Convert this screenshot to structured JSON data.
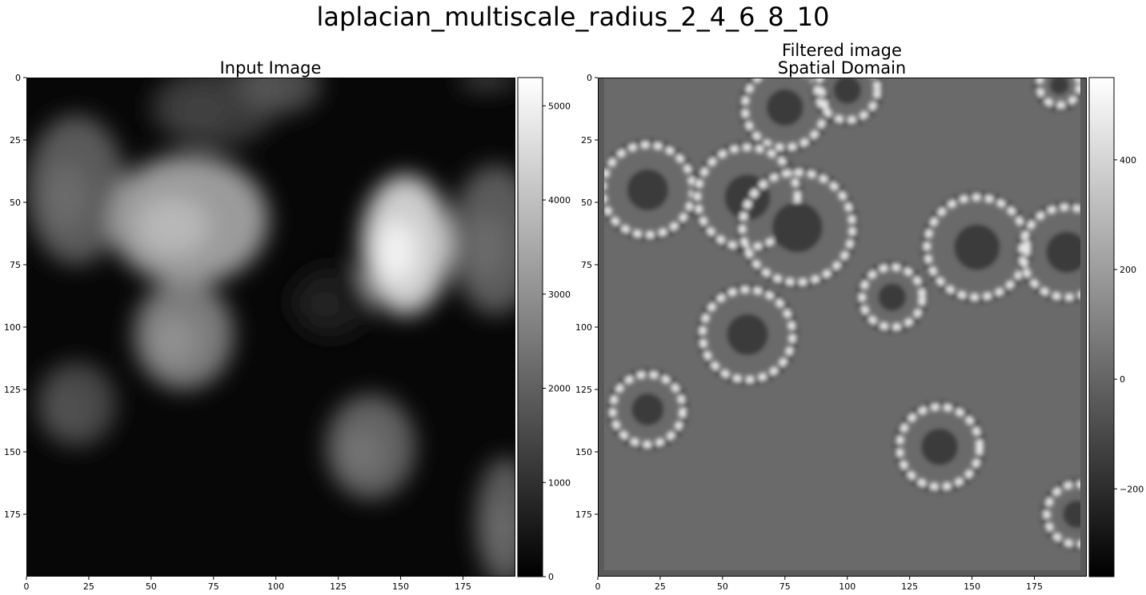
{
  "figure": {
    "suptitle": "laplacian_multiscale_radius_2_4_6_8_10"
  },
  "chart_data": [
    {
      "type": "heatmap",
      "title": "Input Image",
      "colormap": "gray",
      "xlim": [
        0,
        196
      ],
      "ylim": [
        0,
        200
      ],
      "xticks": [
        0,
        25,
        50,
        75,
        100,
        125,
        150,
        175
      ],
      "yticks": [
        0,
        25,
        50,
        75,
        100,
        125,
        150,
        175
      ],
      "colorbar": {
        "range": [
          0,
          5300
        ],
        "ticks": [
          0,
          1000,
          2000,
          3000,
          4000,
          5000
        ]
      },
      "background_value": 150,
      "blobs": [
        {
          "x": 20,
          "y": 45,
          "rx": 20,
          "ry": 30,
          "peak": 2200
        },
        {
          "x": 75,
          "y": 12,
          "rx": 25,
          "ry": 16,
          "peak": 1400
        },
        {
          "x": 100,
          "y": 3,
          "rx": 18,
          "ry": 12,
          "peak": 1800
        },
        {
          "x": 65,
          "y": 57,
          "rx": 32,
          "ry": 26,
          "peak": 3800
        },
        {
          "x": 152,
          "y": 67,
          "rx": 18,
          "ry": 28,
          "peak": 5000
        },
        {
          "x": 188,
          "y": 65,
          "rx": 18,
          "ry": 30,
          "peak": 2200
        },
        {
          "x": 63,
          "y": 103,
          "rx": 20,
          "ry": 22,
          "peak": 3000
        },
        {
          "x": 122,
          "y": 90,
          "rx": 16,
          "ry": 14,
          "peak": 700
        },
        {
          "x": 20,
          "y": 131,
          "rx": 16,
          "ry": 17,
          "peak": 1700
        },
        {
          "x": 138,
          "y": 148,
          "rx": 18,
          "ry": 21,
          "peak": 2400
        },
        {
          "x": 192,
          "y": 178,
          "rx": 12,
          "ry": 26,
          "peak": 2200
        },
        {
          "x": 185,
          "y": 1,
          "rx": 12,
          "ry": 4,
          "peak": 1500
        }
      ]
    },
    {
      "type": "heatmap",
      "title": "Filtered image\nSpatial Domain",
      "colormap": "gray",
      "xlim": [
        0,
        196
      ],
      "ylim": [
        0,
        200
      ],
      "xticks": [
        0,
        25,
        50,
        75,
        100,
        125,
        150,
        175
      ],
      "yticks": [
        0,
        25,
        50,
        75,
        100,
        125,
        150,
        175
      ],
      "colorbar": {
        "range": [
          -360,
          550
        ],
        "ticks": [
          -200,
          0,
          200,
          400
        ],
        "tick_labels": [
          "−200",
          "0",
          "200",
          "400"
        ]
      },
      "background_value": 20,
      "rings": [
        {
          "x": 20,
          "y": 45,
          "r": 18
        },
        {
          "x": 75,
          "y": 12,
          "r": 16
        },
        {
          "x": 100,
          "y": 5,
          "r": 12
        },
        {
          "x": 60,
          "y": 48,
          "r": 20
        },
        {
          "x": 80,
          "y": 60,
          "r": 22
        },
        {
          "x": 152,
          "y": 68,
          "r": 20
        },
        {
          "x": 188,
          "y": 70,
          "r": 18
        },
        {
          "x": 60,
          "y": 103,
          "r": 18
        },
        {
          "x": 118,
          "y": 88,
          "r": 12
        },
        {
          "x": 20,
          "y": 133,
          "r": 14
        },
        {
          "x": 137,
          "y": 148,
          "r": 16
        },
        {
          "x": 192,
          "y": 175,
          "r": 12
        },
        {
          "x": 185,
          "y": 3,
          "r": 8
        }
      ]
    }
  ]
}
